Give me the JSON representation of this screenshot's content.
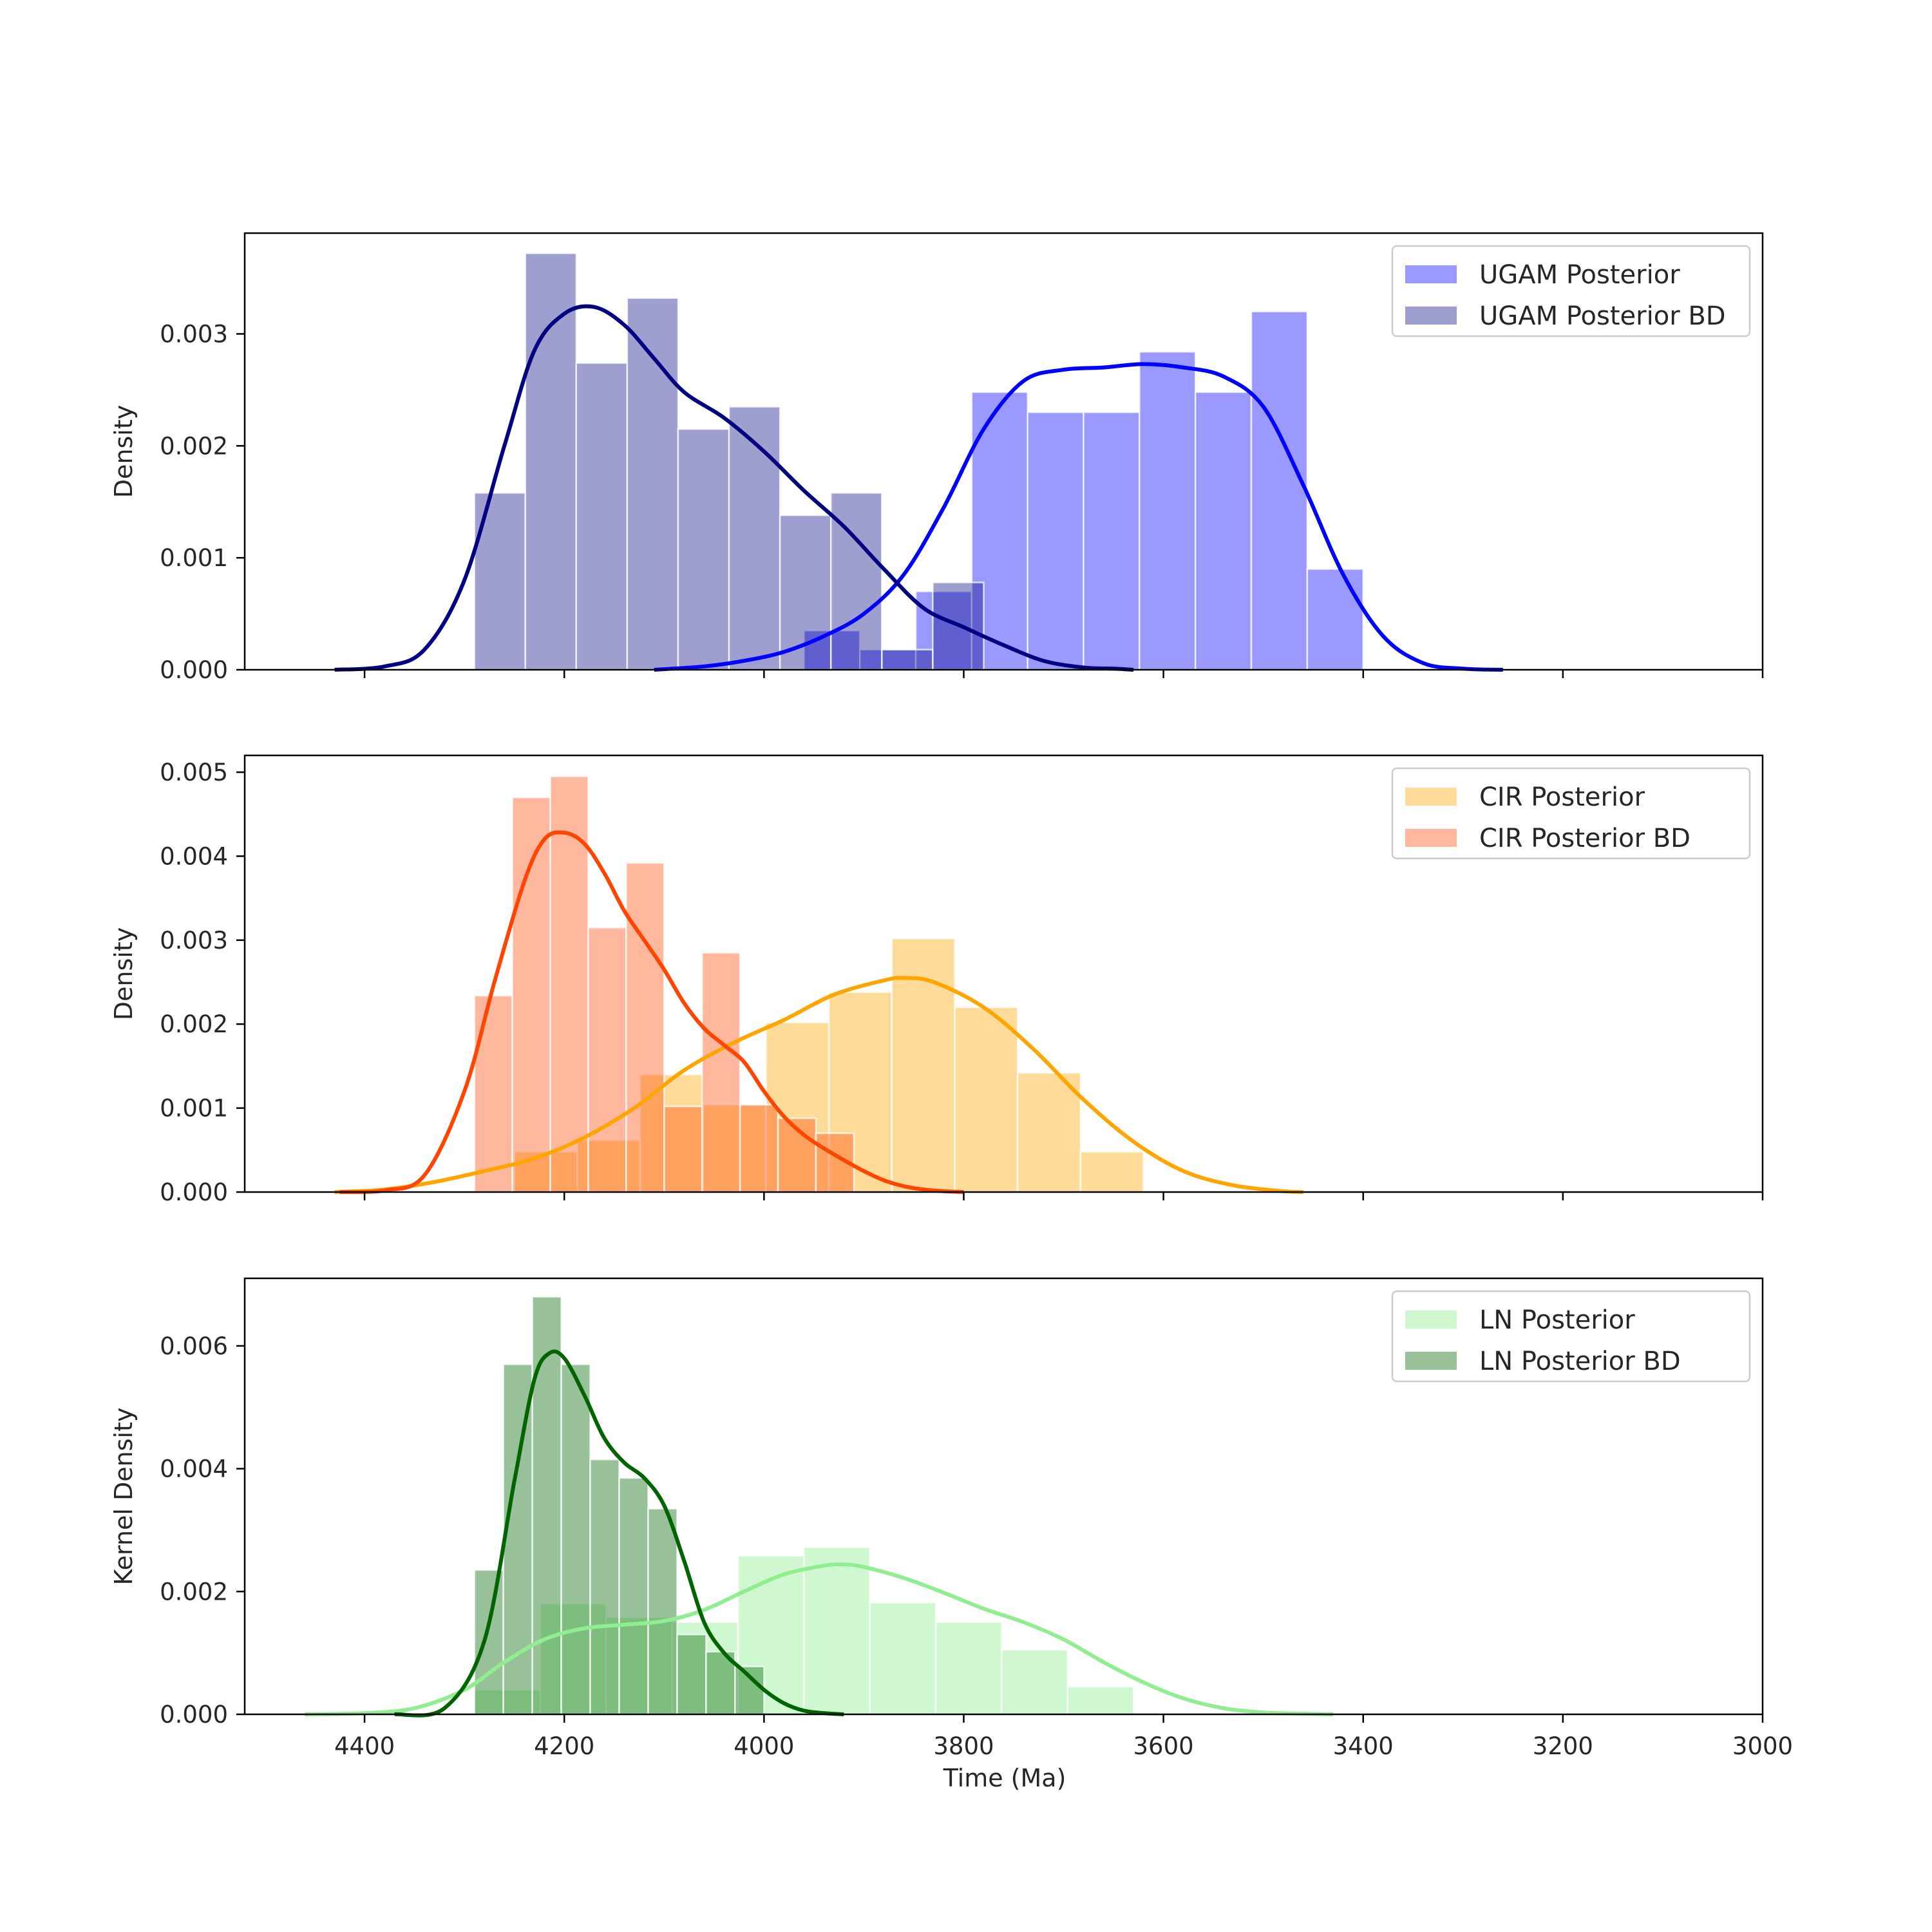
{
  "figure": {
    "xlabel": "Time (Ma)"
  },
  "chart_data": [
    {
      "type": "histogram",
      "ylabel": "Density",
      "xlim": [
        4520,
        3000
      ],
      "xaxis_reversed": true,
      "ylim": [
        0,
        0.0039
      ],
      "xticks": [
        4400,
        4200,
        4000,
        3800,
        3600,
        3400,
        3200,
        3000
      ],
      "yticks": [
        0.0,
        0.001,
        0.002,
        0.003
      ],
      "ytick_labels": [
        "0.000",
        "0.001",
        "0.002",
        "0.003"
      ],
      "show_xtick_labels": false,
      "legend": {
        "position": "top-right"
      },
      "series": [
        {
          "name": "UGAM Posterior",
          "color": "#0000ff",
          "bar_alpha": 0.4,
          "bins": [
            [
              3960,
              3904,
              0.00035
            ],
            [
              3904,
              3848,
              0.00018
            ],
            [
              3848,
              3792,
              0.0007
            ],
            [
              3792,
              3736,
              0.00248
            ],
            [
              3736,
              3680,
              0.0023
            ],
            [
              3680,
              3624,
              0.0023
            ],
            [
              3624,
              3568,
              0.00284
            ],
            [
              3568,
              3512,
              0.00248
            ],
            [
              3512,
              3456,
              0.0032
            ],
            [
              3456,
              3400,
              0.0009
            ]
          ],
          "kde": {
            "x": [
              4110,
              4060,
              4020,
              3980,
              3940,
              3900,
              3860,
              3820,
              3780,
              3740,
              3700,
              3660,
              3620,
              3580,
              3540,
              3500,
              3460,
              3420,
              3380,
              3340,
              3300,
              3260
            ],
            "y": [
              0,
              3e-05,
              8e-05,
              0.00016,
              0.0003,
              0.0005,
              0.00085,
              0.00145,
              0.00215,
              0.00258,
              0.00268,
              0.0027,
              0.00273,
              0.0027,
              0.00262,
              0.00235,
              0.00165,
              0.00085,
              0.0003,
              6e-05,
              1e-05,
              0
            ]
          }
        },
        {
          "name": "UGAM Posterior BD",
          "color": "#000080",
          "bar_alpha": 0.38,
          "bins": [
            [
              4290,
              4239,
              0.00158
            ],
            [
              4239,
              4188,
              0.00372
            ],
            [
              4188,
              4137,
              0.00274
            ],
            [
              4137,
              4086,
              0.00332
            ],
            [
              4086,
              4035,
              0.00215
            ],
            [
              4035,
              3984,
              0.00235
            ],
            [
              3984,
              3933,
              0.00138
            ],
            [
              3933,
              3882,
              0.00158
            ],
            [
              3882,
              3831,
              0.00018
            ],
            [
              3831,
              3780,
              0.00078
            ]
          ],
          "kde": {
            "x": [
              4430,
              4380,
              4340,
              4300,
              4260,
              4230,
              4200,
              4170,
              4140,
              4110,
              4080,
              4040,
              4000,
              3960,
              3920,
              3880,
              3840,
              3800,
              3760,
              3720,
              3680,
              3650,
              3630
            ],
            "y": [
              0,
              3e-05,
              0.00018,
              0.0008,
              0.002,
              0.00285,
              0.00318,
              0.00324,
              0.00308,
              0.00278,
              0.00248,
              0.00225,
              0.00195,
              0.0016,
              0.00128,
              0.0009,
              0.00055,
              0.00038,
              0.00022,
              8e-05,
              2e-05,
              1e-05,
              0
            ]
          }
        }
      ]
    },
    {
      "type": "histogram",
      "ylabel": "Density",
      "xlim": [
        4520,
        3000
      ],
      "xaxis_reversed": true,
      "ylim": [
        0,
        0.0052
      ],
      "xticks": [
        4400,
        4200,
        4000,
        3800,
        3600,
        3400,
        3200,
        3000
      ],
      "yticks": [
        0.0,
        0.001,
        0.002,
        0.003,
        0.004,
        0.005
      ],
      "ytick_labels": [
        "0.000",
        "0.001",
        "0.002",
        "0.003",
        "0.004",
        "0.005"
      ],
      "show_xtick_labels": false,
      "legend": {
        "position": "top-right"
      },
      "series": [
        {
          "name": "CIR Posterior",
          "color": "#ffa500",
          "bar_alpha": 0.4,
          "bins": [
            [
              4250,
              4187,
              0.00048
            ],
            [
              4187,
              4124,
              0.00062
            ],
            [
              4124,
              4061,
              0.0014
            ],
            [
              4061,
              3998,
              0.00104
            ],
            [
              3998,
              3935,
              0.00202
            ],
            [
              3935,
              3872,
              0.00238
            ],
            [
              3872,
              3809,
              0.00302
            ],
            [
              3809,
              3746,
              0.0022
            ],
            [
              3746,
              3683,
              0.00142
            ],
            [
              3683,
              3620,
              0.00048
            ]
          ],
          "kde": {
            "x": [
              4430,
              4380,
              4330,
              4280,
              4230,
              4180,
              4130,
              4080,
              4030,
              3980,
              3930,
              3880,
              3860,
              3830,
              3780,
              3730,
              3680,
              3630,
              3580,
              3530,
              3480,
              3460
            ],
            "y": [
              0,
              3e-05,
              0.00012,
              0.00025,
              0.0004,
              0.00065,
              0.001,
              0.00145,
              0.00178,
              0.00205,
              0.00235,
              0.00252,
              0.00255,
              0.0025,
              0.0022,
              0.0017,
              0.0011,
              0.0006,
              0.00025,
              8e-05,
              1e-05,
              0
            ]
          }
        },
        {
          "name": "CIR Posterior BD",
          "color": "#ff4500",
          "bar_alpha": 0.38,
          "bins": [
            [
              4290,
              4252,
              0.00234
            ],
            [
              4252,
              4214,
              0.0047
            ],
            [
              4214,
              4176,
              0.00495
            ],
            [
              4176,
              4138,
              0.00315
            ],
            [
              4138,
              4100,
              0.00392
            ],
            [
              4100,
              4062,
              0.00102
            ],
            [
              4062,
              4024,
              0.00285
            ],
            [
              4024,
              3986,
              0.00104
            ],
            [
              3986,
              3948,
              0.00088
            ],
            [
              3948,
              3910,
              0.0007
            ]
          ],
          "kde": {
            "x": [
              4425,
              4380,
              4340,
              4300,
              4270,
              4240,
              4220,
              4200,
              4180,
              4160,
              4140,
              4120,
              4100,
              4080,
              4060,
              4040,
              4020,
              4000,
              3980,
              3960,
              3940,
              3920,
              3900,
              3880,
              3860,
              3840,
              3820,
              3800
            ],
            "y": [
              0,
              2e-05,
              0.0002,
              0.0012,
              0.0025,
              0.0037,
              0.0042,
              0.00428,
              0.00415,
              0.0038,
              0.00335,
              0.003,
              0.00265,
              0.00225,
              0.00195,
              0.00175,
              0.00155,
              0.0012,
              0.0009,
              0.00068,
              0.00052,
              0.00038,
              0.00025,
              0.00014,
              7e-05,
              3e-05,
              1e-05,
              0
            ]
          }
        }
      ]
    },
    {
      "type": "histogram",
      "ylabel": "Kernel Density",
      "xlabel": "Time (Ma)",
      "xlim": [
        4520,
        3000
      ],
      "xaxis_reversed": true,
      "ylim": [
        0,
        0.0071
      ],
      "xticks": [
        4400,
        4200,
        4000,
        3800,
        3600,
        3400,
        3200,
        3000
      ],
      "xtick_labels": [
        "4400",
        "4200",
        "4000",
        "3800",
        "3600",
        "3400",
        "3200",
        "3000"
      ],
      "yticks": [
        0.0,
        0.002,
        0.004,
        0.006
      ],
      "ytick_labels": [
        "0.000",
        "0.002",
        "0.004",
        "0.006"
      ],
      "show_xtick_labels": true,
      "legend": {
        "position": "top-right"
      },
      "series": [
        {
          "name": "LN Posterior",
          "color": "#90ee90",
          "bar_alpha": 0.42,
          "bins": [
            [
              4290,
              4224,
              0.0004
            ],
            [
              4224,
              4158,
              0.0018
            ],
            [
              4158,
              4092,
              0.00158
            ],
            [
              4092,
              4026,
              0.0015
            ],
            [
              4026,
              3960,
              0.00258
            ],
            [
              3960,
              3894,
              0.00272
            ],
            [
              3894,
              3828,
              0.00182
            ],
            [
              3828,
              3762,
              0.0015
            ],
            [
              3762,
              3696,
              0.00105
            ],
            [
              3696,
              3630,
              0.00045
            ]
          ],
          "kde": {
            "x": [
              4460,
              4400,
              4350,
              4300,
              4260,
              4220,
              4180,
              4140,
              4100,
              4060,
              4020,
              3980,
              3940,
              3920,
              3900,
              3860,
              3820,
              3780,
              3740,
              3700,
              3660,
              3620,
              3580,
              3540,
              3500,
              3460,
              3430
            ],
            "y": [
              0,
              2e-05,
              0.0001,
              0.0004,
              0.00085,
              0.00122,
              0.0014,
              0.00146,
              0.00152,
              0.0017,
              0.002,
              0.00228,
              0.00242,
              0.00244,
              0.0024,
              0.00222,
              0.00198,
              0.00172,
              0.0015,
              0.00122,
              0.00085,
              0.00052,
              0.00026,
              0.0001,
              3e-05,
              1e-05,
              0
            ]
          }
        },
        {
          "name": "LN Posterior BD",
          "color": "#006400",
          "bar_alpha": 0.4,
          "bins": [
            [
              4290,
              4261,
              0.00235
            ],
            [
              4261,
              4232,
              0.0057
            ],
            [
              4232,
              4203,
              0.0068
            ],
            [
              4203,
              4174,
              0.0057
            ],
            [
              4174,
              4145,
              0.00415
            ],
            [
              4145,
              4116,
              0.00385
            ],
            [
              4116,
              4087,
              0.00335
            ],
            [
              4087,
              4058,
              0.0013
            ],
            [
              4058,
              4029,
              0.00102
            ],
            [
              4029,
              4000,
              0.00078
            ]
          ],
          "kde": {
            "x": [
              4370,
              4320,
              4280,
              4250,
              4230,
              4215,
              4200,
              4180,
              4160,
              4140,
              4120,
              4100,
              4080,
              4060,
              4040,
              4020,
              4000,
              3980,
              3960,
              3940,
              3920
            ],
            "y": [
              0,
              0.0001,
              0.0012,
              0.0038,
              0.00545,
              0.00588,
              0.0058,
              0.0052,
              0.0045,
              0.0041,
              0.00385,
              0.0034,
              0.0025,
              0.0015,
              0.001,
              0.0007,
              0.0004,
              0.00018,
              6e-05,
              2e-05,
              0
            ]
          }
        }
      ]
    }
  ]
}
